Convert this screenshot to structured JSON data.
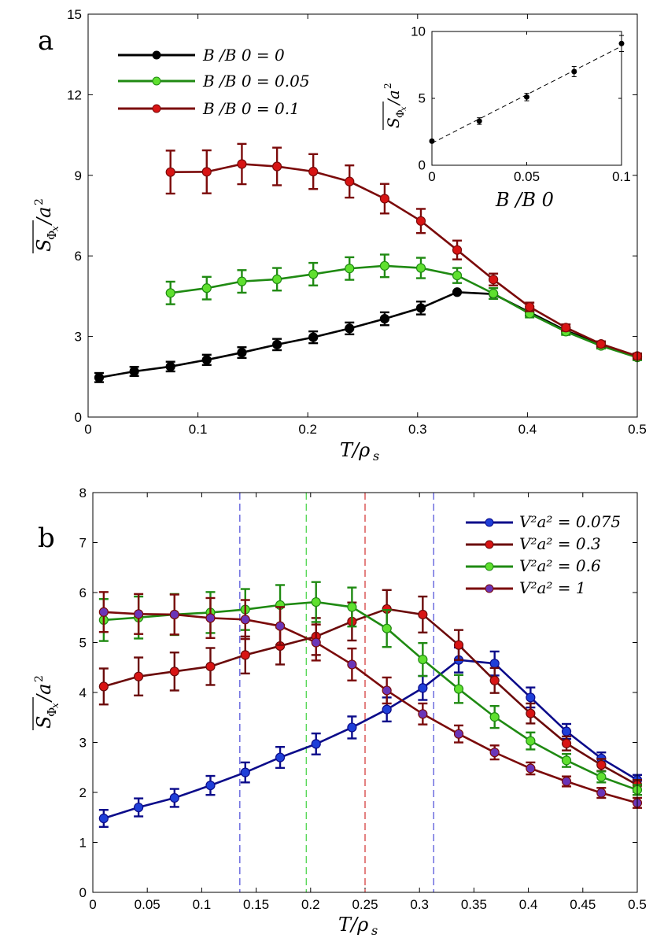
{
  "chart_data": [
    {
      "panel_label": "a",
      "type": "line",
      "xlabel": "T/ρ_s",
      "ylabel": "S_Φx/a²",
      "xlim": [
        0,
        0.5
      ],
      "ylim": [
        0,
        15
      ],
      "xticks": [
        0,
        0.1,
        0.2,
        0.3,
        0.4,
        0.5
      ],
      "xtick_labels": [
        "0",
        "0.1",
        "0.2",
        "0.3",
        "0.4",
        "0.5"
      ],
      "yticks": [
        0,
        3,
        6,
        9,
        12,
        15
      ],
      "ytick_labels": [
        "0",
        "3",
        "6",
        "9",
        "12",
        "15"
      ],
      "legend_position": "top-left",
      "series": [
        {
          "name": "B /B 0 = 0",
          "color": "#000000",
          "x": [
            0.01,
            0.042,
            0.075,
            0.108,
            0.14,
            0.172,
            0.205,
            0.238,
            0.27,
            0.303,
            0.336,
            0.369,
            0.402,
            0.435,
            0.467,
            0.5
          ],
          "y": [
            1.47,
            1.7,
            1.88,
            2.13,
            2.4,
            2.7,
            2.97,
            3.3,
            3.66,
            4.06,
            4.65,
            4.58,
            3.9,
            3.22,
            2.7,
            2.24
          ],
          "err": [
            0.17,
            0.17,
            0.18,
            0.19,
            0.2,
            0.21,
            0.22,
            0.22,
            0.24,
            0.24,
            0.0,
            0.0,
            0.12,
            0.1,
            0.1,
            0.1
          ]
        },
        {
          "name": "B /B 0 = 0.05",
          "color": "#1f8a12",
          "x": [
            0.075,
            0.108,
            0.14,
            0.172,
            0.205,
            0.238,
            0.27,
            0.303,
            0.336,
            0.369,
            0.402,
            0.435,
            0.467,
            0.5
          ],
          "y": [
            4.62,
            4.8,
            5.05,
            5.13,
            5.32,
            5.53,
            5.63,
            5.55,
            5.27,
            4.6,
            3.85,
            3.18,
            2.65,
            2.22
          ],
          "err": [
            0.42,
            0.42,
            0.42,
            0.42,
            0.42,
            0.42,
            0.42,
            0.38,
            0.28,
            0.2,
            0.14,
            0.12,
            0.1,
            0.1
          ]
        },
        {
          "name": "B /B 0 = 0.1",
          "color": "#7b0a0a",
          "x": [
            0.075,
            0.108,
            0.14,
            0.172,
            0.205,
            0.238,
            0.27,
            0.303,
            0.336,
            0.369,
            0.402,
            0.435,
            0.467,
            0.5
          ],
          "y": [
            9.12,
            9.13,
            9.42,
            9.33,
            9.14,
            8.77,
            8.13,
            7.3,
            6.22,
            5.12,
            4.1,
            3.33,
            2.72,
            2.27
          ],
          "err": [
            0.8,
            0.8,
            0.75,
            0.7,
            0.65,
            0.6,
            0.55,
            0.45,
            0.35,
            0.22,
            0.16,
            0.12,
            0.1,
            0.1
          ]
        }
      ],
      "inset": {
        "type": "scatter",
        "xlabel": "B /B 0",
        "ylabel": "S_Φx/a²",
        "xlim": [
          0,
          0.1
        ],
        "ylim": [
          0,
          10
        ],
        "xticks": [
          0,
          0.05,
          0.1
        ],
        "xtick_labels": [
          "0",
          "0.05",
          "0.1"
        ],
        "yticks": [
          0,
          5,
          10
        ],
        "ytick_labels": [
          "0",
          "5",
          "10"
        ],
        "points": {
          "x": [
            0,
            0.025,
            0.05,
            0.075,
            0.1
          ],
          "y": [
            1.8,
            3.3,
            5.1,
            7.0,
            9.1
          ],
          "err": [
            0.1,
            0.25,
            0.28,
            0.38,
            0.6
          ]
        },
        "fit_line": {
          "x": [
            0,
            0.1
          ],
          "y": [
            1.65,
            8.9
          ]
        }
      }
    },
    {
      "panel_label": "b",
      "type": "line",
      "xlabel": "T/ρ_s",
      "ylabel": "S_Φx/a²",
      "xlim": [
        0,
        0.5
      ],
      "ylim": [
        0,
        8
      ],
      "xticks": [
        0,
        0.05,
        0.1,
        0.15,
        0.2,
        0.25,
        0.3,
        0.35,
        0.4,
        0.45,
        0.5
      ],
      "xtick_labels": [
        "0",
        "0.05",
        "0.1",
        "0.15",
        "0.2",
        "0.25",
        "0.3",
        "0.35",
        "0.4",
        "0.45",
        "0.5"
      ],
      "yticks": [
        0,
        1,
        2,
        3,
        4,
        5,
        6,
        7,
        8
      ],
      "ytick_labels": [
        "0",
        "1",
        "2",
        "3",
        "4",
        "5",
        "6",
        "7",
        "8"
      ],
      "legend_position": "top-right",
      "vlines": [
        {
          "x": 0.135,
          "color": "#4a4ad8"
        },
        {
          "x": 0.196,
          "color": "#3fd23f"
        },
        {
          "x": 0.25,
          "color": "#d23030"
        },
        {
          "x": 0.313,
          "color": "#4a4ad8"
        }
      ],
      "series": [
        {
          "name": "V²a² = 0.075",
          "line_color": "#0b0b8a",
          "marker_color": "#1f3fd8",
          "x": [
            0.01,
            0.042,
            0.075,
            0.108,
            0.14,
            0.172,
            0.205,
            0.238,
            0.27,
            0.303,
            0.336,
            0.369,
            0.402,
            0.435,
            0.467,
            0.5
          ],
          "y": [
            1.48,
            1.7,
            1.89,
            2.14,
            2.4,
            2.7,
            2.97,
            3.3,
            3.66,
            4.09,
            4.65,
            4.58,
            3.9,
            3.22,
            2.68,
            2.25
          ],
          "err": [
            0.17,
            0.18,
            0.18,
            0.19,
            0.2,
            0.21,
            0.21,
            0.22,
            0.24,
            0.24,
            0.25,
            0.24,
            0.2,
            0.15,
            0.12,
            0.1
          ]
        },
        {
          "name": "V²a² = 0.3",
          "line_color": "#6b0a0a",
          "marker_color": "#d81414",
          "x": [
            0.01,
            0.042,
            0.075,
            0.108,
            0.14,
            0.172,
            0.205,
            0.238,
            0.27,
            0.303,
            0.336,
            0.369,
            0.402,
            0.435,
            0.467,
            0.5
          ],
          "y": [
            4.12,
            4.32,
            4.42,
            4.52,
            4.75,
            4.93,
            5.12,
            5.42,
            5.67,
            5.56,
            4.95,
            4.24,
            3.58,
            2.98,
            2.55,
            2.15
          ],
          "err": [
            0.36,
            0.38,
            0.38,
            0.37,
            0.37,
            0.37,
            0.37,
            0.38,
            0.38,
            0.36,
            0.3,
            0.25,
            0.2,
            0.14,
            0.12,
            0.1
          ]
        },
        {
          "name": "V²a² = 0.6",
          "line_color": "#1f8a12",
          "marker_color": "#5fe02f",
          "x": [
            0.01,
            0.042,
            0.075,
            0.108,
            0.14,
            0.172,
            0.205,
            0.238,
            0.27,
            0.303,
            0.336,
            0.369,
            0.402,
            0.435,
            0.467,
            0.5
          ],
          "y": [
            5.45,
            5.5,
            5.56,
            5.6,
            5.66,
            5.75,
            5.81,
            5.71,
            5.28,
            4.66,
            4.07,
            3.51,
            3.03,
            2.64,
            2.31,
            2.05
          ],
          "err": [
            0.42,
            0.42,
            0.41,
            0.41,
            0.41,
            0.4,
            0.4,
            0.39,
            0.37,
            0.33,
            0.28,
            0.22,
            0.17,
            0.13,
            0.11,
            0.1
          ]
        },
        {
          "name": "V²a² = 1",
          "line_color": "#7b0a0a",
          "marker_color": "#6a35b8",
          "x": [
            0.01,
            0.042,
            0.075,
            0.108,
            0.14,
            0.172,
            0.205,
            0.238,
            0.27,
            0.303,
            0.336,
            0.369,
            0.402,
            0.435,
            0.467,
            0.5
          ],
          "y": [
            5.61,
            5.57,
            5.56,
            5.49,
            5.46,
            5.33,
            5.0,
            4.56,
            4.04,
            3.57,
            3.17,
            2.8,
            2.48,
            2.22,
            1.99,
            1.79
          ],
          "err": [
            0.4,
            0.4,
            0.4,
            0.4,
            0.39,
            0.38,
            0.36,
            0.32,
            0.26,
            0.21,
            0.17,
            0.14,
            0.12,
            0.1,
            0.1,
            0.1
          ]
        }
      ]
    }
  ]
}
